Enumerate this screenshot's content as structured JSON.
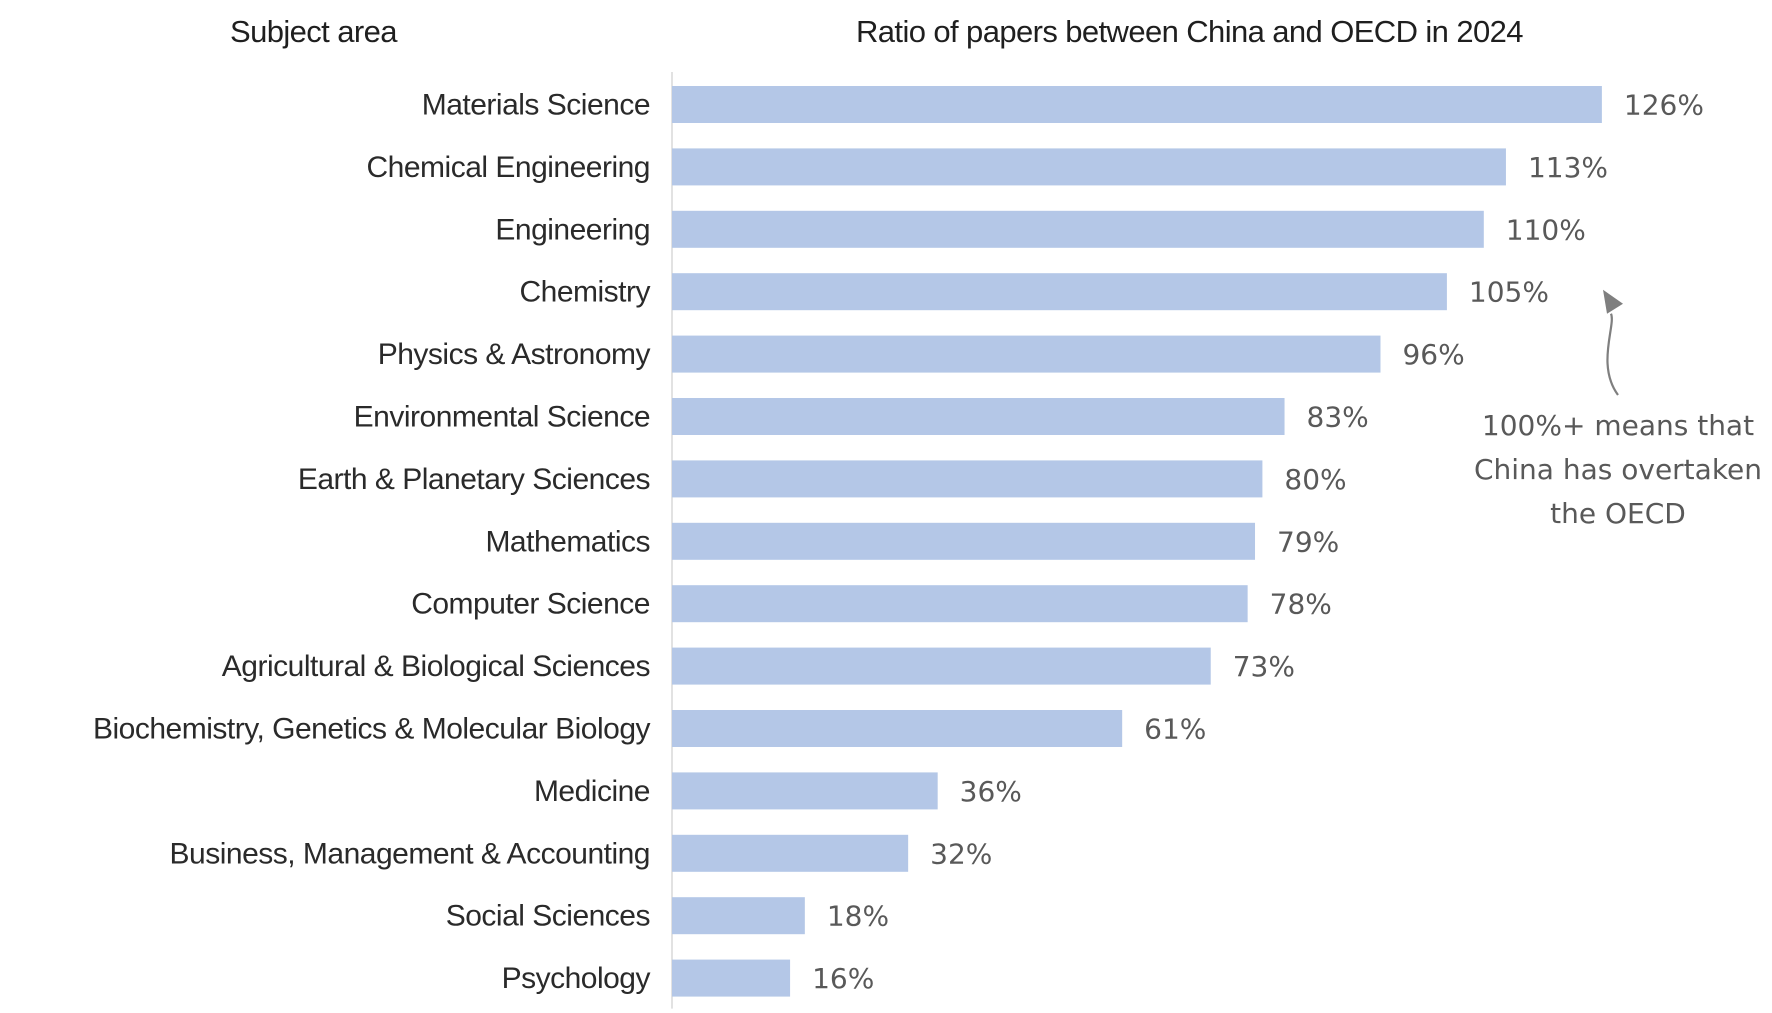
{
  "chart_data": {
    "type": "bar",
    "orientation": "horizontal",
    "title": "Ratio of papers between China and OECD in 2024",
    "category_header": "Subject area",
    "categories": [
      "Materials Science",
      "Chemical Engineering",
      "Engineering",
      "Chemistry",
      "Physics & Astronomy",
      "Environmental Science",
      "Earth & Planetary Sciences",
      "Mathematics",
      "Computer Science",
      "Agricultural & Biological Sciences",
      "Biochemistry, Genetics & Molecular Biology",
      "Medicine",
      "Business, Management & Accounting",
      "Social Sciences",
      "Psychology"
    ],
    "values": [
      126,
      113,
      110,
      105,
      96,
      83,
      80,
      79,
      78,
      73,
      61,
      36,
      32,
      18,
      16
    ],
    "data_labels": [
      "126%",
      "113%",
      "110%",
      "105%",
      "96%",
      "83%",
      "80%",
      "79%",
      "78%",
      "73%",
      "61%",
      "36%",
      "32%",
      "18%",
      "16%"
    ],
    "value_unit": "%",
    "xlim": [
      0,
      126
    ],
    "grid": false,
    "legend": "none",
    "bar_color": "#b4c7e7",
    "annotation": {
      "lines": [
        "100%+ means that",
        "China has overtaken",
        "the OECD"
      ],
      "points_to": "Chemistry"
    }
  }
}
